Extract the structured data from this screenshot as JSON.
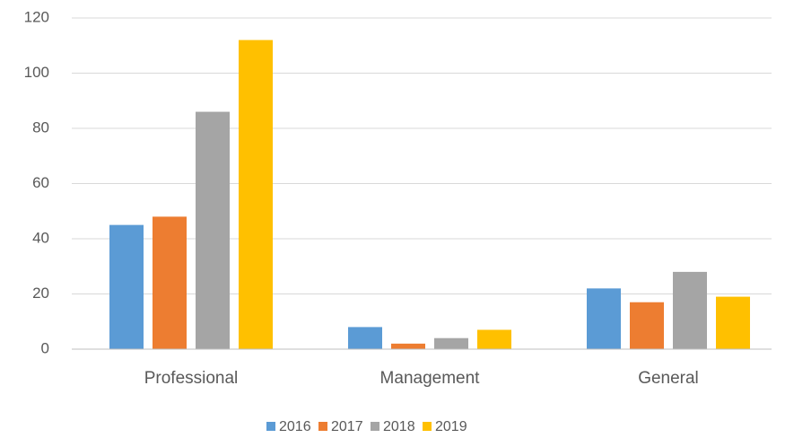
{
  "chart_data": {
    "type": "bar",
    "categories": [
      "Professional",
      "Management",
      "General"
    ],
    "series": [
      {
        "name": "2016",
        "color": "#5b9bd5",
        "values": [
          45,
          8,
          22
        ]
      },
      {
        "name": "2017",
        "color": "#ed7d31",
        "values": [
          48,
          2,
          17
        ]
      },
      {
        "name": "2018",
        "color": "#a5a5a5",
        "values": [
          86,
          4,
          28
        ]
      },
      {
        "name": "2019",
        "color": "#ffc000",
        "values": [
          112,
          7,
          19
        ]
      }
    ],
    "ylim": [
      0,
      120
    ],
    "yticks": [
      0,
      20,
      40,
      60,
      80,
      100,
      120
    ],
    "grid": true,
    "legend": "bottom"
  }
}
